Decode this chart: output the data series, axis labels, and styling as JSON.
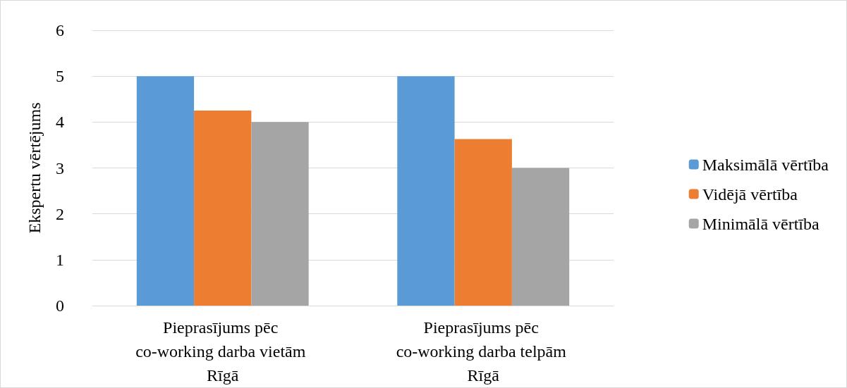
{
  "chart_data": {
    "type": "bar",
    "ylabel": "Ekspertu vērtējums",
    "categories": [
      "Pieprasījums pēc co-working darba vietām Rīgā",
      "Pieprasījums pēc co-working darba telpām Rīgā"
    ],
    "series": [
      {
        "name": "Maksimālā vērtība",
        "color": "#5b9bd5",
        "values": [
          5,
          5
        ]
      },
      {
        "name": "Vidējā vērtība",
        "color": "#ed7d31",
        "values": [
          4.25,
          3.63
        ]
      },
      {
        "name": "Minimālā vērtība",
        "color": "#a5a5a5",
        "values": [
          4,
          3
        ]
      }
    ],
    "ylim": [
      0,
      6
    ],
    "yticks": [
      0,
      1,
      2,
      3,
      4,
      5,
      6
    ],
    "grid": "y",
    "legend": "right"
  }
}
